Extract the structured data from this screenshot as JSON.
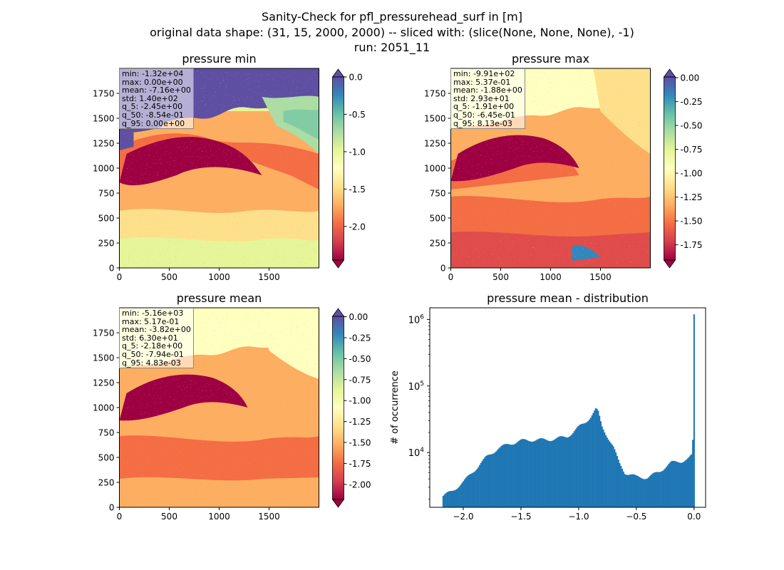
{
  "figure": {
    "title_line1": "Sanity-Check for pfl_pressurehead_surf in [m]",
    "title_line2": "original data shape: (31, 15, 2000, 2000) -- sliced with: (slice(None, None, None), -1)",
    "title_line3": "run: 2051_11"
  },
  "colors": {
    "spectral": [
      "#9e0142",
      "#d53e4f",
      "#f46d43",
      "#fdae61",
      "#fee08b",
      "#ffffbf",
      "#e6f598",
      "#abdda4",
      "#66c2a5",
      "#3288bd",
      "#5e4fa2"
    ],
    "hist_bar": "#1f77b4"
  },
  "chart_data": [
    {
      "type": "heatmap",
      "title": "pressure min",
      "x_ticks": [
        0,
        500,
        1000,
        1500
      ],
      "y_ticks": [
        0,
        250,
        500,
        750,
        1000,
        1250,
        1500,
        1750
      ],
      "xlim": [
        0,
        2000
      ],
      "ylim": [
        0,
        2000
      ],
      "colorbar": {
        "range": [
          -2.45,
          0.0
        ],
        "ticks": [
          "0.0",
          "-0.5",
          "-1.0",
          "-1.5",
          "-2.0"
        ],
        "tick_values": [
          0.0,
          -0.5,
          -1.0,
          -1.5,
          -2.0
        ],
        "extend": "both"
      },
      "stats": [
        "min: -1.32e+04",
        "max: 0.00e+00",
        "mean: -7.16e+00",
        "std: 1.40e+02",
        "q_5: -2.45e+00",
        "q_50: -8.54e-01",
        "q_95: 0.00e+00"
      ]
    },
    {
      "type": "heatmap",
      "title": "pressure max",
      "x_ticks": [
        0,
        500,
        1000,
        1500
      ],
      "y_ticks": [
        0,
        250,
        500,
        750,
        1000,
        1250,
        1500,
        1750
      ],
      "xlim": [
        0,
        2000
      ],
      "ylim": [
        0,
        2000
      ],
      "colorbar": {
        "range": [
          -1.91,
          0.0081
        ],
        "ticks": [
          "0.00",
          "-0.25",
          "-0.50",
          "-0.75",
          "-1.00",
          "-1.25",
          "-1.50",
          "-1.75"
        ],
        "tick_values": [
          0.0,
          -0.25,
          -0.5,
          -0.75,
          -1.0,
          -1.25,
          -1.5,
          -1.75
        ],
        "extend": "both"
      },
      "stats": [
        "min: -9.91e+02",
        "max: 5.37e-01",
        "mean: -1.88e+00",
        "std: 2.93e+01",
        "q_5: -1.91e+00",
        "q_50: -6.45e-01",
        "q_95: 8.13e-03"
      ]
    },
    {
      "type": "heatmap",
      "title": "pressure mean",
      "x_ticks": [
        0,
        500,
        1000,
        1500
      ],
      "y_ticks": [
        0,
        250,
        500,
        750,
        1000,
        1250,
        1500,
        1750
      ],
      "xlim": [
        0,
        2000
      ],
      "ylim": [
        0,
        2000
      ],
      "colorbar": {
        "range": [
          -2.18,
          0.0048
        ],
        "ticks": [
          "0.00",
          "-0.25",
          "-0.50",
          "-0.75",
          "-1.00",
          "-1.25",
          "-1.50",
          "-1.75",
          "-2.00"
        ],
        "tick_values": [
          0.0,
          -0.25,
          -0.5,
          -0.75,
          -1.0,
          -1.25,
          -1.5,
          -1.75,
          -2.0
        ],
        "extend": "both"
      },
      "stats": [
        "min: -5.16e+03",
        "max: 5.17e-01",
        "mean: -3.82e+00",
        "std: 6.30e+01",
        "q_5: -2.18e+00",
        "q_50: -7.94e-01",
        "q_95: 4.83e-03"
      ]
    },
    {
      "type": "bar",
      "title": "pressure mean - distribution",
      "ylabel": "# of occurrence",
      "yscale": "log",
      "xlim": [
        -2.29,
        0.1
      ],
      "ylim": [
        1500,
        1500000
      ],
      "x_ticks": [
        -2.0,
        -1.5,
        -1.0,
        -0.5,
        0.0
      ],
      "x_tick_labels": [
        "−2.0",
        "−1.5",
        "−1.0",
        "−0.5",
        "0.0"
      ],
      "y_ticks": [
        10000,
        100000,
        1000000
      ],
      "y_tick_labels": [
        "10^4",
        "10^5",
        "10^6"
      ],
      "bin_range": [
        -2.18,
        0.005
      ],
      "bins": 200,
      "profile": {
        "x": [
          -2.18,
          -2.1,
          -2.0,
          -1.9,
          -1.8,
          -1.7,
          -1.6,
          -1.5,
          -1.4,
          -1.3,
          -1.2,
          -1.1,
          -1.05,
          -1.0,
          -0.95,
          -0.9,
          -0.87,
          -0.85,
          -0.83,
          -0.8,
          -0.77,
          -0.73,
          -0.7,
          -0.65,
          -0.6,
          -0.5,
          -0.4,
          -0.3,
          -0.2,
          -0.1,
          -0.05,
          -0.02,
          -0.01,
          0.0
        ],
        "counts": [
          2200,
          2600,
          3600,
          5500,
          8500,
          11500,
          13500,
          15000,
          15500,
          15500,
          16000,
          17500,
          20000,
          24000,
          28000,
          34000,
          40000,
          45000,
          40000,
          25000,
          20000,
          15000,
          12000,
          7000,
          5000,
          4300,
          4200,
          5200,
          7000,
          7500,
          8000,
          9000,
          16000,
          1200000
        ]
      }
    }
  ]
}
